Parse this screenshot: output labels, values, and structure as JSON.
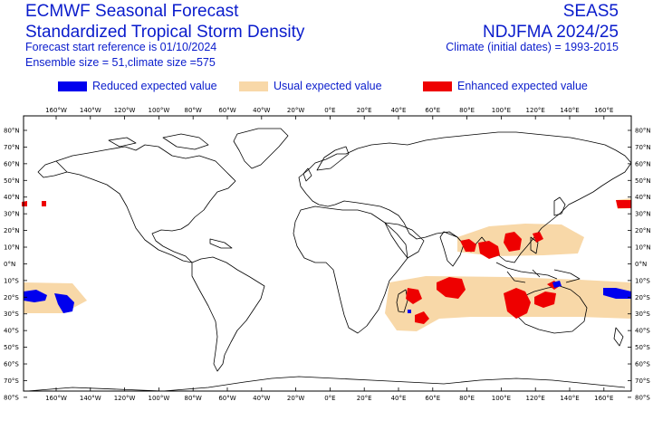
{
  "header": {
    "title_line1": "ECMWF Seasonal Forecast",
    "title_line2": "Standardized Tropical Storm Density",
    "forecast_start": "Forecast start reference is 01/10/2024",
    "ensemble": "Ensemble size = 51,climate size =575",
    "system": "SEAS5",
    "period": "NDJFMA 2024/25",
    "climate": "Climate (initial dates) = 1993-2015"
  },
  "legend": [
    {
      "label": "Reduced expected value",
      "color": "#0000ee"
    },
    {
      "label": "Usual expected value",
      "color": "#f8d8a8"
    },
    {
      "label": "Enhanced expected value",
      "color": "#ee0000"
    }
  ],
  "map": {
    "lon_labels": [
      "160°W",
      "140°W",
      "120°W",
      "100°W",
      "80°W",
      "60°W",
      "40°W",
      "20°W",
      "0°E",
      "20°E",
      "40°E",
      "60°E",
      "80°E",
      "100°E",
      "120°E",
      "140°E",
      "160°E"
    ],
    "lat_labels": [
      "80°N",
      "70°N",
      "60°N",
      "50°N",
      "40°N",
      "30°N",
      "20°N",
      "10°N",
      "0°N",
      "10°S",
      "20°S",
      "30°S",
      "40°S",
      "50°S",
      "60°S",
      "70°S",
      "80°S"
    ]
  }
}
